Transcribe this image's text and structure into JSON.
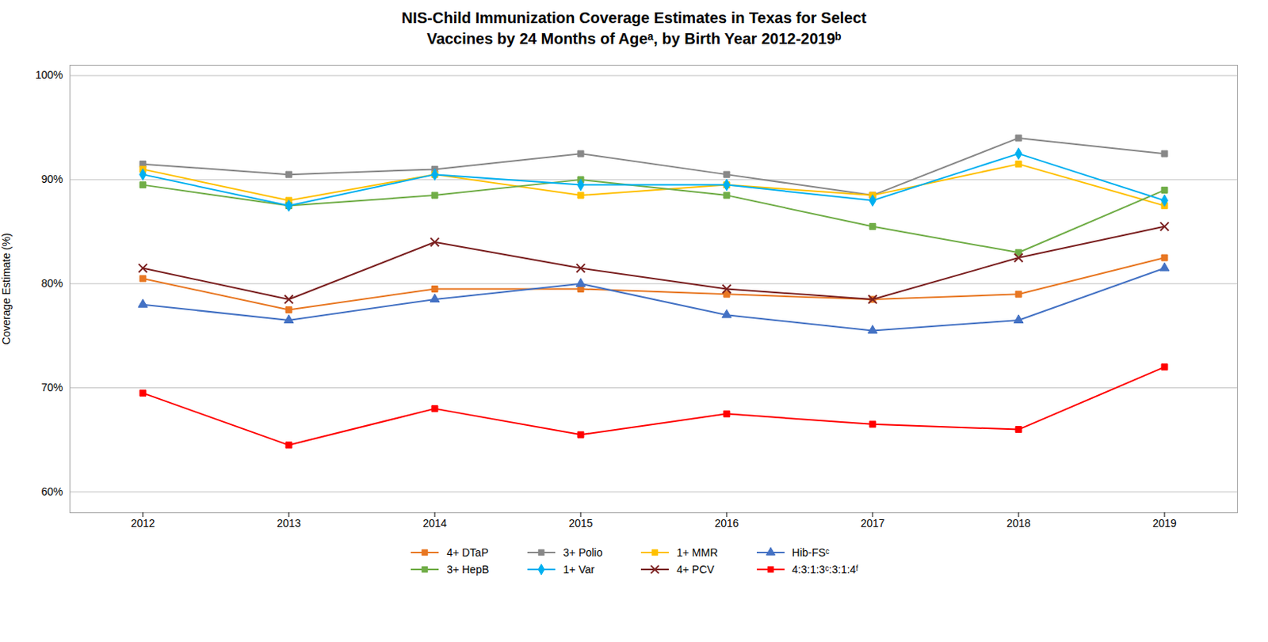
{
  "chart_data": {
    "type": "line",
    "title": "NIS-Child Immunization Coverage Estimates in Texas for Select\nVaccines by 24 Months of Ageᵃ, by Birth Year 2012-2019ᵇ",
    "x": [
      2012,
      2013,
      2014,
      2015,
      2016,
      2017,
      2018,
      2019
    ],
    "xlim": [
      2011.5,
      2019.5
    ],
    "xticks": [
      2012,
      2013,
      2014,
      2015,
      2016,
      2017,
      2018,
      2019
    ],
    "ylim": [
      58,
      101
    ],
    "yticks": [
      {
        "value": 60,
        "label": "60%"
      },
      {
        "value": 70,
        "label": "70%"
      },
      {
        "value": 80,
        "label": "80%"
      },
      {
        "value": 90,
        "label": "90%"
      },
      {
        "value": 100,
        "label": "100%"
      }
    ],
    "y_label": "Coverage Estimate (%)",
    "grid": true,
    "legend": "bottom",
    "series": [
      {
        "name": "4+ DTaP",
        "color": "#E87722",
        "marker": "square",
        "values": [
          80.5,
          77.5,
          79.5,
          79.5,
          79.0,
          78.5,
          79.0,
          82.5
        ]
      },
      {
        "name": "3+ Polio",
        "color": "#888888",
        "marker": "square",
        "values": [
          91.5,
          90.5,
          91.0,
          92.5,
          90.5,
          88.5,
          94.0,
          92.5
        ]
      },
      {
        "name": "1+ MMR",
        "color": "#FFC000",
        "marker": "square",
        "values": [
          91.0,
          88.0,
          90.5,
          88.5,
          89.5,
          88.5,
          91.5,
          87.5
        ]
      },
      {
        "name": "Hib-FSᶜ",
        "color": "#4472C4",
        "marker": "triangle",
        "values": [
          78.0,
          76.5,
          78.5,
          80.0,
          77.0,
          75.5,
          76.5,
          81.5
        ]
      },
      {
        "name": "3+ HepB",
        "color": "#70AD47",
        "marker": "square",
        "values": [
          89.5,
          87.5,
          88.5,
          90.0,
          88.5,
          85.5,
          83.0,
          89.0
        ]
      },
      {
        "name": "1+ Var",
        "color": "#00B0F0",
        "marker": "diamond",
        "values": [
          90.5,
          87.5,
          90.5,
          89.5,
          89.5,
          88.0,
          92.5,
          88.0
        ]
      },
      {
        "name": "4+ PCV",
        "color": "#7B2020",
        "marker": "x",
        "values": [
          81.5,
          78.5,
          84.0,
          81.5,
          79.5,
          78.5,
          82.5,
          85.5
        ]
      },
      {
        "name": "4:3:1:3ᶜ:3:1:4ᶠ",
        "color": "#FF0000",
        "marker": "square",
        "values": [
          69.5,
          64.5,
          68.0,
          65.5,
          67.5,
          66.5,
          66.0,
          72.0
        ]
      }
    ]
  }
}
